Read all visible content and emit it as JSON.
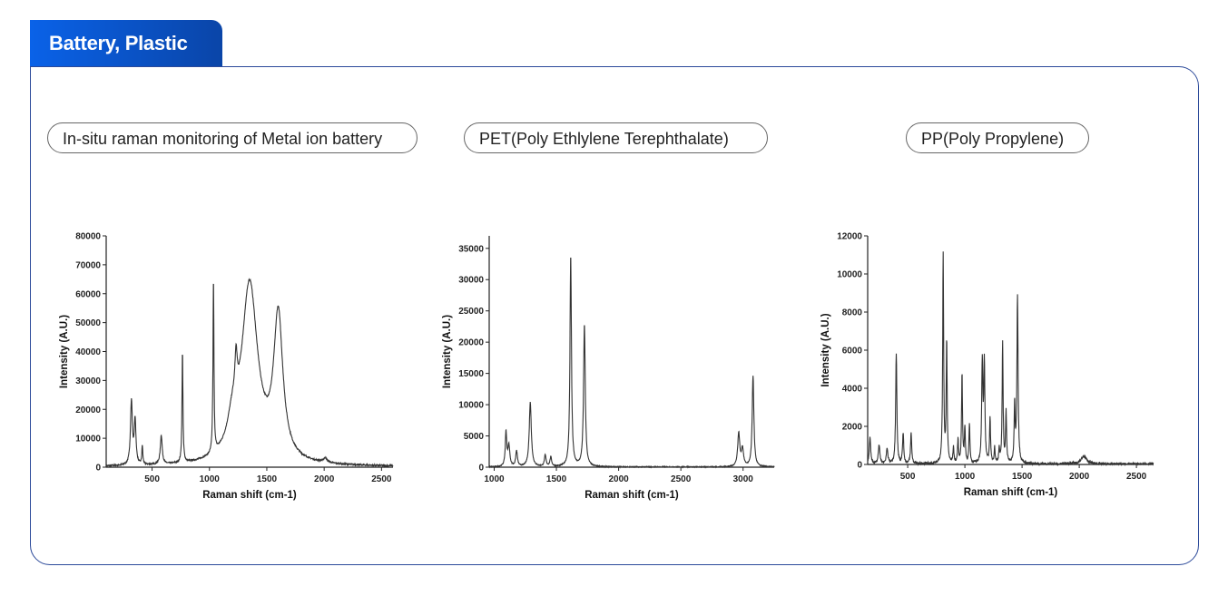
{
  "tab_label": "Battery, Plastic",
  "colors": {
    "tab_start": "#0a62e8",
    "tab_end": "#0a45a8",
    "border": "#2c4a9a",
    "line": "#333333"
  },
  "chart_data": [
    {
      "type": "line",
      "title": "In-situ raman monitoring of Metal ion battery",
      "xlabel": "Raman shift (cm-1)",
      "ylabel": "Intensity (A.U.)",
      "xlim": [
        100,
        2600
      ],
      "ylim": [
        0,
        80000
      ],
      "xticks": [
        500,
        1000,
        1500,
        2000,
        2500
      ],
      "yticks": [
        0,
        10000,
        20000,
        30000,
        40000,
        50000,
        60000,
        70000,
        80000
      ],
      "noise": 500,
      "peaks": [
        [
          320,
          22000,
          10
        ],
        [
          352,
          15000,
          9
        ],
        [
          415,
          6500,
          5
        ],
        [
          580,
          10000,
          10
        ],
        [
          765,
          38500,
          5
        ],
        [
          1035,
          60000,
          5
        ],
        [
          1200,
          9000,
          50
        ],
        [
          1232,
          14000,
          12
        ],
        [
          1350,
          62000,
          85
        ],
        [
          1600,
          49000,
          48
        ],
        [
          2010,
          1500,
          20
        ]
      ]
    },
    {
      "type": "line",
      "title": "PET(Poly Ethlylene Terephthalate)",
      "xlabel": "Raman shift (cm-1)",
      "ylabel": "Intensity (A.U.)",
      "xlim": [
        960,
        3250
      ],
      "ylim": [
        0,
        37000
      ],
      "xticks": [
        1000,
        1500,
        2000,
        2500,
        3000
      ],
      "yticks": [
        0,
        5000,
        10000,
        15000,
        20000,
        25000,
        30000,
        35000
      ],
      "noise": 150,
      "peaks": [
        [
          1095,
          5500,
          7
        ],
        [
          1118,
          3300,
          9
        ],
        [
          1180,
          2500,
          8
        ],
        [
          1290,
          10300,
          10
        ],
        [
          1410,
          1800,
          8
        ],
        [
          1455,
          1500,
          8
        ],
        [
          1615,
          34000,
          7
        ],
        [
          1725,
          22800,
          8
        ],
        [
          2965,
          5300,
          10
        ],
        [
          2995,
          2800,
          10
        ],
        [
          3080,
          14500,
          8
        ]
      ]
    },
    {
      "type": "line",
      "title": "PP(Poly Propylene)",
      "xlabel": "Raman shift (cm-1)",
      "ylabel": "Intensity (A.U.)",
      "xlim": [
        150,
        2650
      ],
      "ylim": [
        0,
        12000
      ],
      "xticks": [
        500,
        1000,
        1500,
        2000,
        2500
      ],
      "yticks": [
        0,
        2000,
        4000,
        6000,
        8000,
        10000,
        12000
      ],
      "noise": 120,
      "peaks": [
        [
          170,
          1400,
          7
        ],
        [
          250,
          1000,
          8
        ],
        [
          320,
          800,
          8
        ],
        [
          400,
          5800,
          6
        ],
        [
          460,
          1600,
          6
        ],
        [
          530,
          1600,
          6
        ],
        [
          810,
          11000,
          5
        ],
        [
          841,
          6400,
          5
        ],
        [
          900,
          800,
          5
        ],
        [
          940,
          1200,
          5
        ],
        [
          975,
          4700,
          5
        ],
        [
          1000,
          1800,
          5
        ],
        [
          1040,
          2100,
          5
        ],
        [
          1152,
          5200,
          6
        ],
        [
          1170,
          5200,
          6
        ],
        [
          1220,
          2400,
          5
        ],
        [
          1260,
          800,
          5
        ],
        [
          1300,
          700,
          5
        ],
        [
          1330,
          6300,
          5
        ],
        [
          1360,
          2700,
          5
        ],
        [
          1435,
          3000,
          5
        ],
        [
          1460,
          8800,
          6
        ],
        [
          2040,
          400,
          30
        ]
      ]
    }
  ]
}
